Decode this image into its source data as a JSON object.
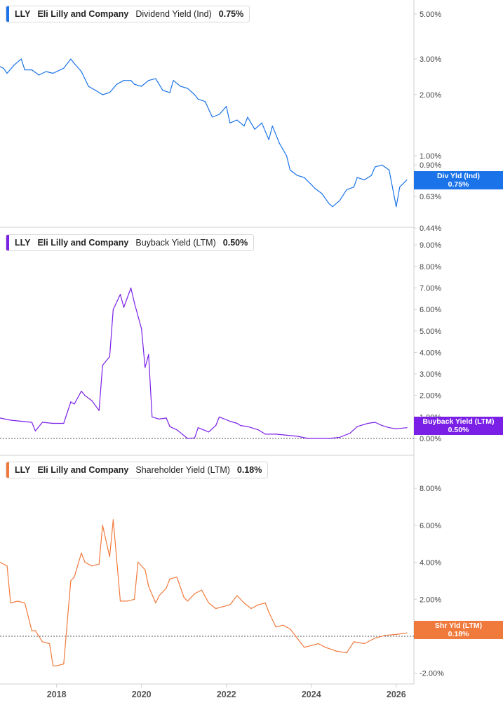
{
  "chart_data": [
    {
      "type": "line",
      "ticker": "LLY",
      "company": "Eli Lilly and Company",
      "metric": "Dividend Yield (Ind)",
      "current_value": "0.75%",
      "flag_label": "Div Yld (Ind)",
      "color": "#1a73e8",
      "scale": "log",
      "ylim": [
        0.44,
        5.5
      ],
      "yticks": [
        0.44,
        0.63,
        0.9,
        1.0,
        2.0,
        3.0,
        5.0
      ],
      "ytick_labels": [
        "0.44%",
        "0.63%",
        "0.90%",
        "1.00%",
        "2.00%",
        "3.00%",
        "5.00%"
      ],
      "x": [
        "2016-09",
        "2016-10",
        "2016-11",
        "2017-01",
        "2017-03",
        "2017-04",
        "2017-06",
        "2017-08",
        "2017-10",
        "2017-12",
        "2018-01",
        "2018-03",
        "2018-05",
        "2018-06",
        "2018-08",
        "2018-10",
        "2018-12",
        "2019-02",
        "2019-04",
        "2019-06",
        "2019-08",
        "2019-10",
        "2019-11",
        "2020-01",
        "2020-03",
        "2020-05",
        "2020-07",
        "2020-09",
        "2020-10",
        "2020-12",
        "2021-02",
        "2021-04",
        "2021-05",
        "2021-07",
        "2021-09",
        "2021-11",
        "2022-01",
        "2022-02",
        "2022-04",
        "2022-06",
        "2022-07",
        "2022-09",
        "2022-11",
        "2023-01",
        "2023-02",
        "2023-04",
        "2023-06",
        "2023-07",
        "2023-09",
        "2023-11",
        "2024-01",
        "2024-02",
        "2024-04",
        "2024-06",
        "2024-07",
        "2024-09",
        "2024-11",
        "2025-01",
        "2025-02",
        "2025-04",
        "2025-06",
        "2025-07",
        "2025-09",
        "2025-11",
        "2026-01",
        "2026-02",
        "2026-04"
      ],
      "values": [
        2.75,
        2.7,
        2.55,
        2.8,
        3.0,
        2.65,
        2.65,
        2.5,
        2.6,
        2.55,
        2.6,
        2.7,
        3.0,
        2.85,
        2.6,
        2.2,
        2.1,
        2.0,
        2.05,
        2.25,
        2.35,
        2.35,
        2.25,
        2.2,
        2.35,
        2.4,
        2.1,
        2.05,
        2.35,
        2.2,
        2.15,
        2.0,
        1.9,
        1.85,
        1.55,
        1.6,
        1.75,
        1.45,
        1.5,
        1.4,
        1.55,
        1.35,
        1.45,
        1.2,
        1.4,
        1.15,
        1.0,
        0.85,
        0.8,
        0.78,
        0.72,
        0.69,
        0.65,
        0.58,
        0.56,
        0.6,
        0.68,
        0.7,
        0.78,
        0.76,
        0.8,
        0.88,
        0.9,
        0.85,
        0.56,
        0.7,
        0.76
      ]
    },
    {
      "type": "line",
      "ticker": "LLY",
      "company": "Eli Lilly and Company",
      "metric": "Buyback Yield (LTM)",
      "current_value": "0.50%",
      "flag_label": "Buyback Yield (LTM)",
      "color": "#7a1fe6",
      "ylim": [
        0,
        9.3
      ],
      "yticks": [
        0,
        1,
        2,
        3,
        4,
        5,
        6,
        7,
        8,
        9
      ],
      "ytick_labels": [
        "0.00%",
        "1.00%",
        "2.00%",
        "3.00%",
        "4.00%",
        "5.00%",
        "6.00%",
        "7.00%",
        "8.00%",
        "9.00%"
      ],
      "x": [
        "2016-09",
        "2016-12",
        "2017-03",
        "2017-06",
        "2017-07",
        "2017-09",
        "2017-12",
        "2018-03",
        "2018-05",
        "2018-06",
        "2018-08",
        "2018-09",
        "2018-11",
        "2019-01",
        "2019-02",
        "2019-04",
        "2019-05",
        "2019-07",
        "2019-08",
        "2019-10",
        "2019-11",
        "2020-01",
        "2020-02",
        "2020-03",
        "2020-04",
        "2020-06",
        "2020-08",
        "2020-09",
        "2020-11",
        "2021-02",
        "2021-04",
        "2021-05",
        "2021-08",
        "2021-10",
        "2021-11",
        "2022-02",
        "2022-04",
        "2022-05",
        "2022-07",
        "2022-10",
        "2022-12",
        "2023-03",
        "2023-06",
        "2023-09",
        "2023-12",
        "2024-03",
        "2024-06",
        "2024-09",
        "2024-12",
        "2025-02",
        "2025-05",
        "2025-07",
        "2025-09",
        "2025-11",
        "2026-01",
        "2026-04"
      ],
      "values": [
        0.95,
        0.85,
        0.8,
        0.75,
        0.35,
        0.75,
        0.7,
        0.7,
        1.7,
        1.6,
        2.2,
        2.0,
        1.75,
        1.3,
        3.4,
        3.8,
        6.0,
        6.7,
        6.1,
        7.0,
        6.3,
        5.1,
        3.3,
        3.9,
        1.0,
        0.9,
        0.95,
        0.55,
        0.4,
        0.0,
        0.02,
        0.5,
        0.3,
        0.6,
        1.0,
        0.8,
        0.7,
        0.6,
        0.55,
        0.4,
        0.2,
        0.2,
        0.15,
        0.1,
        0.0,
        0.0,
        0.0,
        0.05,
        0.25,
        0.55,
        0.7,
        0.75,
        0.6,
        0.5,
        0.45,
        0.5
      ]
    },
    {
      "type": "line",
      "ticker": "LLY",
      "company": "Eli Lilly and Company",
      "metric": "Shareholder Yield (LTM)",
      "current_value": "0.18%",
      "flag_label": "Shr Yld (LTM)",
      "color": "#f07a3c",
      "ylim": [
        -2.2,
        8.8
      ],
      "yticks": [
        -2,
        0,
        2,
        4,
        6,
        8
      ],
      "ytick_labels": [
        "-2.00%",
        "0.00%",
        "2.00%",
        "4.00%",
        "6.00%",
        "8.00%"
      ],
      "x": [
        "2016-09",
        "2016-11",
        "2016-12",
        "2017-02",
        "2017-04",
        "2017-06",
        "2017-07",
        "2017-09",
        "2017-11",
        "2017-12",
        "2018-01",
        "2018-03",
        "2018-05",
        "2018-06",
        "2018-08",
        "2018-09",
        "2018-11",
        "2019-01",
        "2019-02",
        "2019-04",
        "2019-05",
        "2019-07",
        "2019-09",
        "2019-11",
        "2019-12",
        "2020-02",
        "2020-03",
        "2020-05",
        "2020-06",
        "2020-08",
        "2020-09",
        "2020-11",
        "2021-01",
        "2021-02",
        "2021-04",
        "2021-06",
        "2021-08",
        "2021-10",
        "2021-12",
        "2022-02",
        "2022-04",
        "2022-06",
        "2022-08",
        "2022-10",
        "2022-12",
        "2023-01",
        "2023-03",
        "2023-05",
        "2023-07",
        "2023-09",
        "2023-11",
        "2024-01",
        "2024-03",
        "2024-05",
        "2024-08",
        "2024-11",
        "2025-01",
        "2025-04",
        "2025-07",
        "2025-10",
        "2026-01",
        "2026-04"
      ],
      "values": [
        4.0,
        3.8,
        1.8,
        1.9,
        1.8,
        0.3,
        0.3,
        -0.3,
        -0.4,
        -1.6,
        -1.6,
        -1.5,
        3.0,
        3.2,
        4.5,
        4.0,
        3.8,
        3.9,
        6.0,
        4.3,
        6.3,
        1.9,
        1.9,
        2.0,
        4.0,
        3.6,
        2.7,
        1.8,
        2.2,
        2.6,
        3.1,
        3.2,
        2.1,
        1.9,
        2.3,
        2.5,
        1.8,
        1.5,
        1.6,
        1.7,
        2.2,
        1.8,
        1.5,
        1.7,
        1.8,
        1.3,
        0.5,
        0.6,
        0.4,
        -0.1,
        -0.6,
        -0.5,
        -0.4,
        -0.6,
        -0.8,
        -0.9,
        -0.3,
        -0.4,
        -0.1,
        0.05,
        0.1,
        0.18
      ]
    }
  ],
  "x_axis": {
    "range": [
      "2016-09",
      "2026-06"
    ],
    "ticks": [
      "2018",
      "2020",
      "2022",
      "2024",
      "2026"
    ]
  },
  "colors": {
    "grid_border": "#cfcfcf",
    "axis_text": "#444444",
    "zero_line": "#555555"
  }
}
